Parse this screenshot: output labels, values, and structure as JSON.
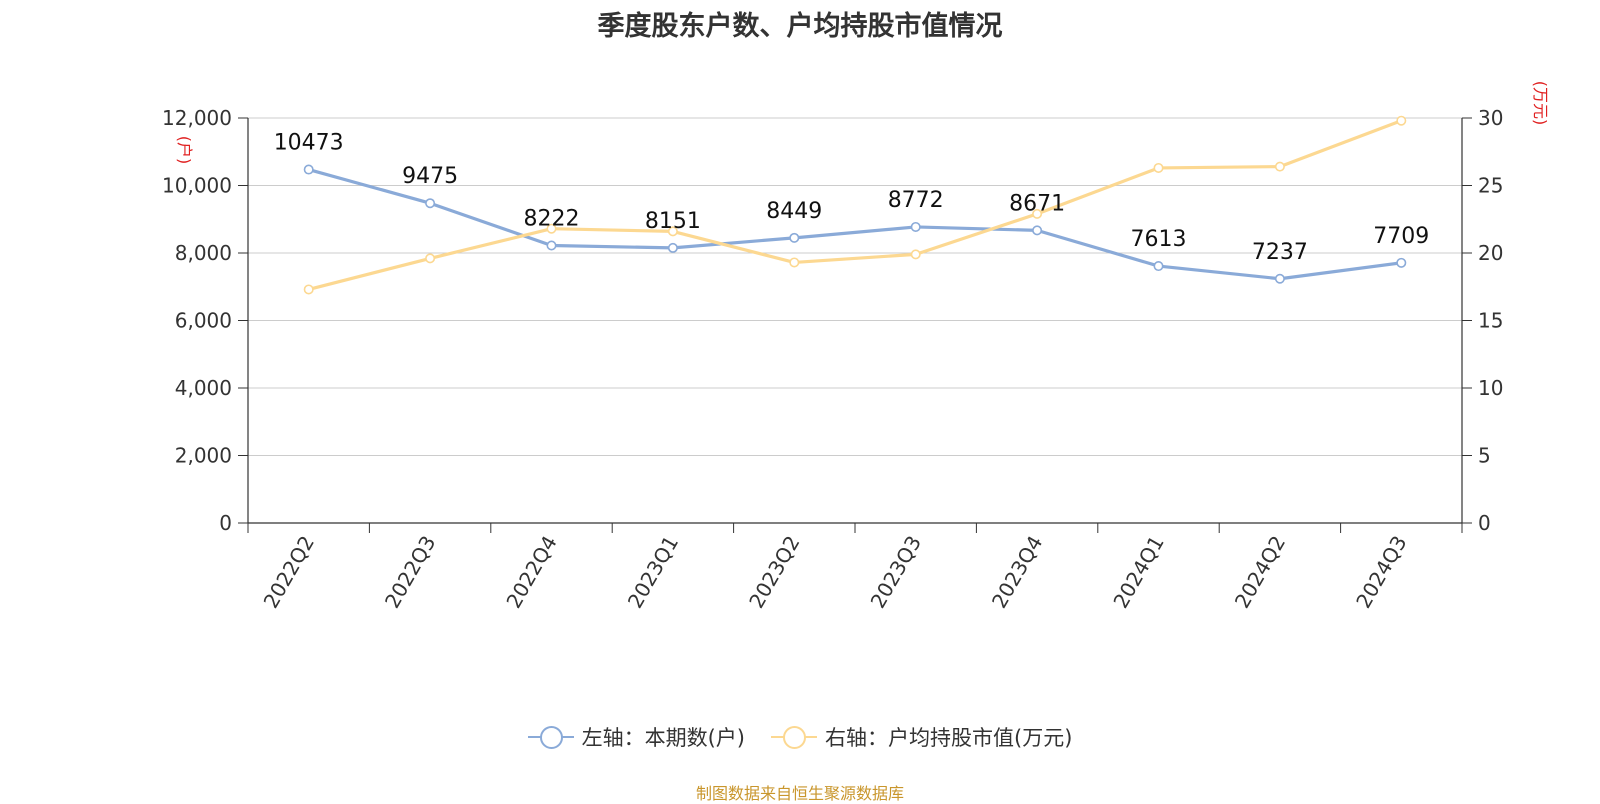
{
  "chart_data": {
    "type": "line",
    "title": "季度股东户数、户均持股市值情况",
    "categories": [
      "2022Q2",
      "2022Q3",
      "2022Q4",
      "2023Q1",
      "2023Q2",
      "2023Q3",
      "2023Q4",
      "2024Q1",
      "2024Q2",
      "2024Q3"
    ],
    "y_left": {
      "unit": "(户)",
      "ticks": [
        "0",
        "2,000",
        "4,000",
        "6,000",
        "8,000",
        "10,000",
        "12,000"
      ],
      "range": [
        0,
        12000
      ]
    },
    "y_right": {
      "unit": "(万元)",
      "ticks": [
        "0",
        "5",
        "10",
        "15",
        "20",
        "25",
        "30"
      ],
      "range": [
        0,
        30
      ]
    },
    "series": [
      {
        "name": "左轴：本期数(户)",
        "axis": "left",
        "color": "#8aaad8",
        "values": [
          10473,
          9475,
          8222,
          8151,
          8449,
          8772,
          8671,
          7613,
          7237,
          7709
        ],
        "labels": [
          "10473",
          "9475",
          "8222",
          "8151",
          "8449",
          "8772",
          "8671",
          "7613",
          "7237",
          "7709"
        ]
      },
      {
        "name": "右轴：户均持股市值(万元)",
        "axis": "right",
        "color": "#fcd891",
        "values": [
          17.3,
          19.6,
          21.8,
          21.6,
          19.3,
          19.9,
          22.9,
          26.3,
          26.4,
          29.8
        ]
      }
    ],
    "grid": true,
    "legend_position": "bottom"
  },
  "source": "制图数据来自恒生聚源数据库"
}
